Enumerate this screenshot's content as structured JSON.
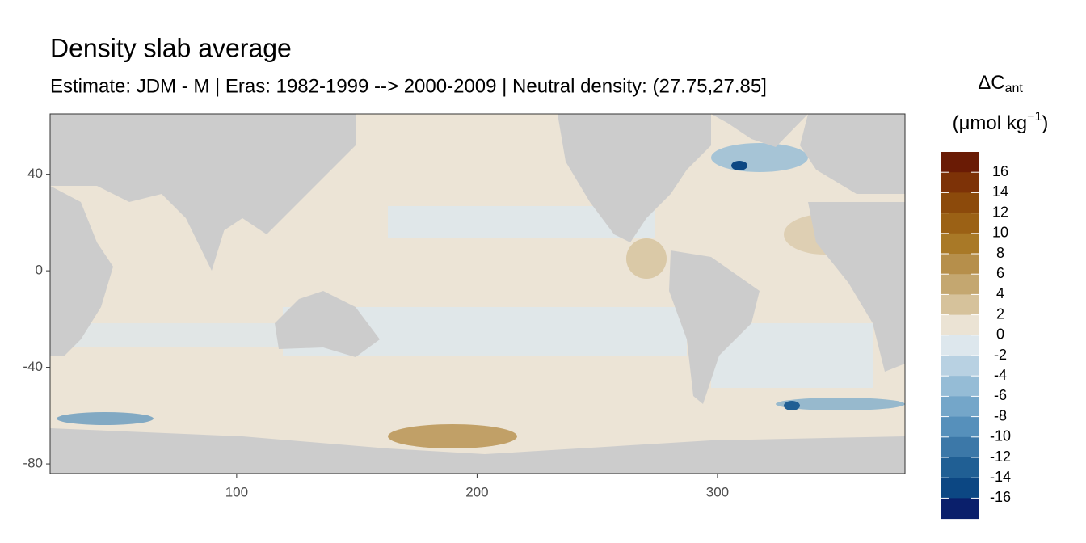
{
  "chart_data": {
    "type": "map",
    "title": "Density slab average",
    "subtitle": "Estimate: JDM - M | Eras: 1982-1999 --> 2000-2009 | Neutral density: (27.75,27.85]",
    "xlim": [
      22.4,
      378
    ],
    "ylim": [
      -84,
      65
    ],
    "xticks": [
      100,
      200,
      300
    ],
    "yticks": [
      40,
      0,
      -40,
      -80
    ],
    "land_color": "#cccccc",
    "ocean_color": "#ece4d6",
    "legend": {
      "title": "ΔC",
      "title_sub": "ant",
      "unit": "(μmol kg",
      "unit_sup": "−1",
      "unit_end": ")",
      "breaks": [
        16,
        14,
        12,
        10,
        8,
        6,
        4,
        2,
        0,
        -2,
        -4,
        -6,
        -8,
        -10,
        -12,
        -14,
        -16
      ],
      "colors": [
        "#6a1b05",
        "#7d3207",
        "#8c4a0b",
        "#9b6115",
        "#a97927",
        "#b68f4b",
        "#c4a770",
        "#d6c29b",
        "#ebe3d4",
        "#dde7ed",
        "#b8d1e2",
        "#95bcd6",
        "#74a6c9",
        "#5690bb",
        "#3c78a8",
        "#205f94",
        "#0c4783",
        "#0a1f6b"
      ]
    }
  }
}
